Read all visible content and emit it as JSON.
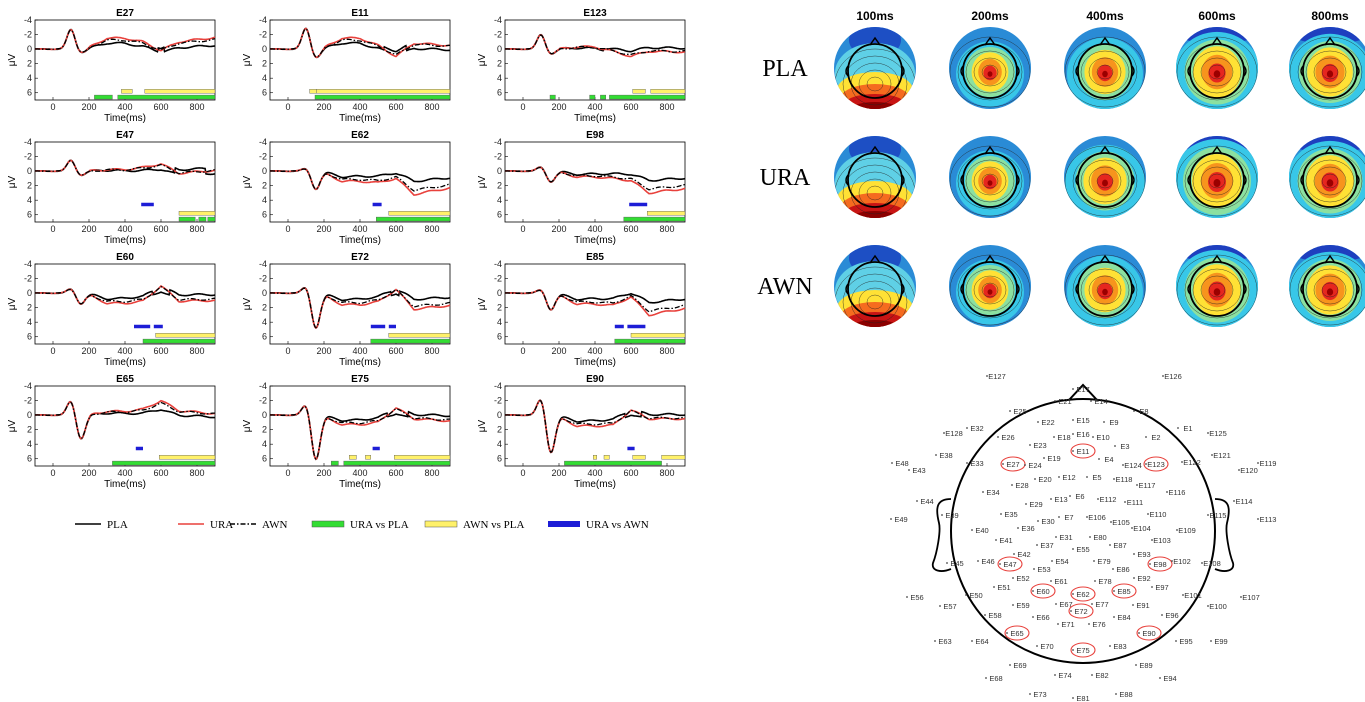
{
  "colors": {
    "PLA": "#000000",
    "URA": "#e8413c",
    "AWN": "#000000",
    "URA_vs_PLA": "#33dd33",
    "AWN_vs_PLA": "#fff16a",
    "URA_vs_AWN": "#1d1dd6",
    "highlight": "#e8413c"
  },
  "legend": [
    {
      "key": "PLA",
      "label": "PLA",
      "style": "line-solid"
    },
    {
      "key": "URA",
      "label": "URA",
      "style": "line-red"
    },
    {
      "key": "AWN",
      "label": "AWN",
      "style": "line-dashdot"
    },
    {
      "key": "URA_vs_PLA",
      "label": "URA vs PLA",
      "style": "bar-green"
    },
    {
      "key": "AWN_vs_PLA",
      "label": "AWN vs PLA",
      "style": "bar-yellow"
    },
    {
      "key": "URA_vs_AWN",
      "label": "URA vs AWN",
      "style": "bar-blue"
    }
  ],
  "chart_data": [
    {
      "type": "line",
      "panels": [
        {
          "title": "E27",
          "peak": -2.7,
          "dip": 0.5,
          "late": [
            -1.5,
            -1.0,
            0.2,
            -1.0,
            -1.6
          ],
          "sig": {
            "green": [
              [
                230,
                330
              ],
              [
                360,
                900
              ]
            ],
            "yellow": [
              [
                380,
                440
              ],
              [
                510,
                900
              ]
            ],
            "blue": []
          }
        },
        {
          "title": "E11",
          "peak": -2.9,
          "dip": 1.2,
          "late": [
            -1.5,
            -0.5,
            1.0,
            -0.8,
            -0.5
          ],
          "sig": {
            "green": [
              [
                150,
                900
              ]
            ],
            "yellow": [
              [
                120,
                160
              ],
              [
                160,
                900
              ]
            ],
            "blue": []
          }
        },
        {
          "title": "E123",
          "peak": -2.0,
          "dip": 0.7,
          "late": [
            -0.3,
            0.3,
            1.0,
            0.3,
            0.4
          ],
          "sig": {
            "green": [
              [
                150,
                180
              ],
              [
                370,
                400
              ],
              [
                430,
                460
              ],
              [
                480,
                900
              ]
            ],
            "yellow": [
              [
                610,
                680
              ],
              [
                710,
                900
              ]
            ],
            "blue": []
          }
        },
        {
          "title": "E47",
          "peak": -1.5,
          "dip": 0.6,
          "late": [
            -0.2,
            -0.5,
            -1.0,
            0.3,
            -0.1
          ],
          "sig": {
            "green": [
              [
                700,
                790
              ],
              [
                810,
                850
              ],
              [
                860,
                900
              ]
            ],
            "yellow": [
              [
                700,
                900
              ]
            ],
            "blue": [
              [
                490,
                560
              ]
            ]
          }
        },
        {
          "title": "E62",
          "peak": -0.4,
          "dip": 2.5,
          "late": [
            1.4,
            1.6,
            1.0,
            3.2,
            2.3
          ],
          "sig": {
            "green": [
              [
                490,
                900
              ]
            ],
            "yellow": [
              [
                560,
                900
              ]
            ],
            "blue": [
              [
                470,
                520
              ]
            ]
          }
        },
        {
          "title": "E98",
          "peak": -0.6,
          "dip": 1.5,
          "late": [
            0.8,
            1.0,
            1.3,
            3.0,
            2.4
          ],
          "sig": {
            "green": [
              [
                560,
                900
              ]
            ],
            "yellow": [
              [
                690,
                900
              ]
            ],
            "blue": [
              [
                590,
                690
              ]
            ]
          }
        },
        {
          "title": "E60",
          "peak": -0.6,
          "dip": 1.5,
          "late": [
            1.4,
            1.1,
            -1.0,
            1.1,
            1.0
          ],
          "sig": {
            "green": [
              [
                500,
                900
              ]
            ],
            "yellow": [
              [
                570,
                900
              ]
            ],
            "blue": [
              [
                450,
                540
              ],
              [
                560,
                610
              ]
            ]
          }
        },
        {
          "title": "E72",
          "peak": -0.9,
          "dip": 4.8,
          "late": [
            1.6,
            1.2,
            -0.5,
            2.2,
            1.7
          ],
          "sig": {
            "green": [
              [
                460,
                900
              ]
            ],
            "yellow": [
              [
                560,
                900
              ]
            ],
            "blue": [
              [
                460,
                540
              ],
              [
                560,
                600
              ]
            ]
          }
        },
        {
          "title": "E85",
          "peak": -0.5,
          "dip": 2.3,
          "late": [
            1.5,
            1.7,
            0.5,
            3.0,
            2.1
          ],
          "sig": {
            "green": [
              [
                510,
                900
              ]
            ],
            "yellow": [
              [
                600,
                900
              ]
            ],
            "blue": [
              [
                510,
                560
              ],
              [
                580,
                680
              ]
            ]
          }
        },
        {
          "title": "E65",
          "peak": -2.0,
          "dip": 3.3,
          "late": [
            -0.5,
            -0.8,
            -2.0,
            -0.6,
            -0.2
          ],
          "sig": {
            "green": [
              [
                330,
                900
              ]
            ],
            "yellow": [
              [
                590,
                900
              ]
            ],
            "blue": [
              [
                460,
                500
              ]
            ]
          }
        },
        {
          "title": "E75",
          "peak": -1.5,
          "dip": 6.1,
          "late": [
            1.3,
            1.0,
            -1.0,
            0.5,
            0.8
          ],
          "sig": {
            "green": [
              [
                240,
                280
              ],
              [
                310,
                900
              ]
            ],
            "yellow": [
              [
                340,
                380
              ],
              [
                430,
                460
              ],
              [
                590,
                900
              ]
            ],
            "blue": [
              [
                470,
                510
              ]
            ]
          }
        },
        {
          "title": "E90",
          "peak": -2.3,
          "dip": 5.2,
          "late": [
            1.5,
            1.4,
            -0.7,
            0.5,
            0.5
          ],
          "sig": {
            "green": [
              [
                230,
                770
              ]
            ],
            "yellow": [
              [
                390,
                410
              ],
              [
                450,
                480
              ],
              [
                610,
                680
              ],
              [
                770,
                900
              ]
            ],
            "blue": [
              [
                580,
                620
              ]
            ]
          }
        }
      ],
      "xlabel": "Time(ms)",
      "ylabel": "μV",
      "xlim": [
        -100,
        900
      ],
      "ylim": [
        -4,
        7
      ],
      "yticks": [
        -4,
        -2,
        0,
        2,
        4,
        6
      ],
      "xticks": [
        0,
        200,
        400,
        600,
        800
      ],
      "yaxis_inverted": true
    },
    {
      "type": "heatmap",
      "times": [
        "100ms",
        "200ms",
        "400ms",
        "600ms",
        "800ms"
      ],
      "conditions": [
        "PLA",
        "URA",
        "AWN"
      ],
      "intensity": [
        [
          0.55,
          0.7,
          0.8,
          0.95,
          0.9
        ],
        [
          0.6,
          0.7,
          0.85,
          1.0,
          0.95
        ],
        [
          0.55,
          0.7,
          0.8,
          0.95,
          0.9
        ]
      ]
    }
  ],
  "electrode_map": {
    "highlighted": [
      "E11",
      "E27",
      "E123",
      "E47",
      "E98",
      "E60",
      "E62",
      "E85",
      "E72",
      "E65",
      "E90",
      "E75"
    ],
    "labels": [
      "E127",
      "E126",
      "E17",
      "E14",
      "E21",
      "E25",
      "E22",
      "E15",
      "E9",
      "E8",
      "E128",
      "E32",
      "E26",
      "E16",
      "E18",
      "E10",
      "E2",
      "E1",
      "E125",
      "E23",
      "E19",
      "E11",
      "E3",
      "E4",
      "E48",
      "E38",
      "E33",
      "E27",
      "E24",
      "E124",
      "E123",
      "E122",
      "E121",
      "E119",
      "E43",
      "E120",
      "E28",
      "E20",
      "E12",
      "E5",
      "E118",
      "E117",
      "E34",
      "E13",
      "E6",
      "E112",
      "E116",
      "E29",
      "E44",
      "E111",
      "E114",
      "E35",
      "E7",
      "E106",
      "E110",
      "E49",
      "E39",
      "E30",
      "E105",
      "E115",
      "E113",
      "E36",
      "E104",
      "E109",
      "E40",
      "E31",
      "E80",
      "E103",
      "E41",
      "E37",
      "E87",
      "E55",
      "E93",
      "E54",
      "E79",
      "E98",
      "E102",
      "E46",
      "E47",
      "E42",
      "E86",
      "E108",
      "E45",
      "E53",
      "E78",
      "E92",
      "E52",
      "E61",
      "E97",
      "E51",
      "E62",
      "E85",
      "E60",
      "E50",
      "E67",
      "E77",
      "E101",
      "E107",
      "E56",
      "E59",
      "E72",
      "E91",
      "E100",
      "E57",
      "E58",
      "E66",
      "E84",
      "E96",
      "E71",
      "E76",
      "E65",
      "E90",
      "E63",
      "E64",
      "E70",
      "E75",
      "E83",
      "E95",
      "E99",
      "E69",
      "E89",
      "E74",
      "E82",
      "E68",
      "E94",
      "E73",
      "E81",
      "E88"
    ]
  }
}
